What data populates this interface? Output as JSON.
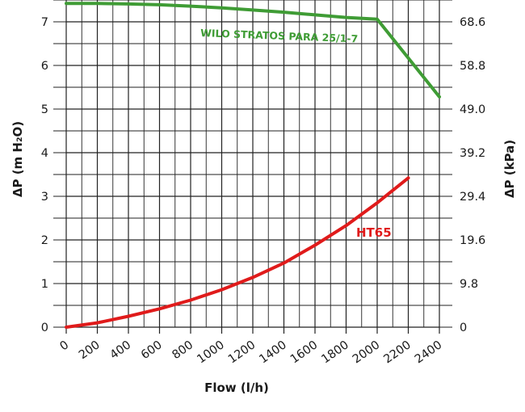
{
  "chart_data": {
    "type": "line",
    "x": [
      0,
      200,
      400,
      600,
      800,
      1000,
      1200,
      1400,
      1600,
      1800,
      2000,
      2200,
      2400
    ],
    "xlabel": "Flow (l/h)",
    "ylabel_left": "ΔP (m H₂O)",
    "ylabel_right": "ΔP (kPa)",
    "xlim": [
      0,
      2400
    ],
    "ylim": [
      0,
      7.5
    ],
    "x_ticks": [
      "0",
      "200",
      "400",
      "600",
      "800",
      "1000",
      "1200",
      "1400",
      "1600",
      "1800",
      "2000",
      "2200",
      "2400"
    ],
    "y_ticks_left": [
      "0",
      "1",
      "2",
      "3",
      "4",
      "5",
      "6",
      "7"
    ],
    "y_ticks_right": [
      "0",
      "9.8",
      "19.6",
      "29.4",
      "39.2",
      "49.0",
      "58.8",
      "68.6"
    ],
    "grid": true,
    "series": [
      {
        "name": "WILO STRATOS PARA 25/1-7",
        "color": "#3f9c35",
        "x": [
          0,
          200,
          400,
          600,
          800,
          1000,
          1200,
          1400,
          1600,
          1800,
          2000,
          2400
        ],
        "y": [
          7.42,
          7.42,
          7.41,
          7.39,
          7.36,
          7.32,
          7.27,
          7.22,
          7.16,
          7.1,
          7.06,
          5.28
        ]
      },
      {
        "name": "HT65",
        "color": "#e01b1b",
        "x": [
          0,
          200,
          400,
          600,
          800,
          1000,
          1200,
          1400,
          1600,
          1800,
          2000,
          2200
        ],
        "y": [
          0,
          0.1,
          0.25,
          0.42,
          0.62,
          0.86,
          1.14,
          1.47,
          1.88,
          2.33,
          2.85,
          3.42
        ]
      }
    ]
  }
}
